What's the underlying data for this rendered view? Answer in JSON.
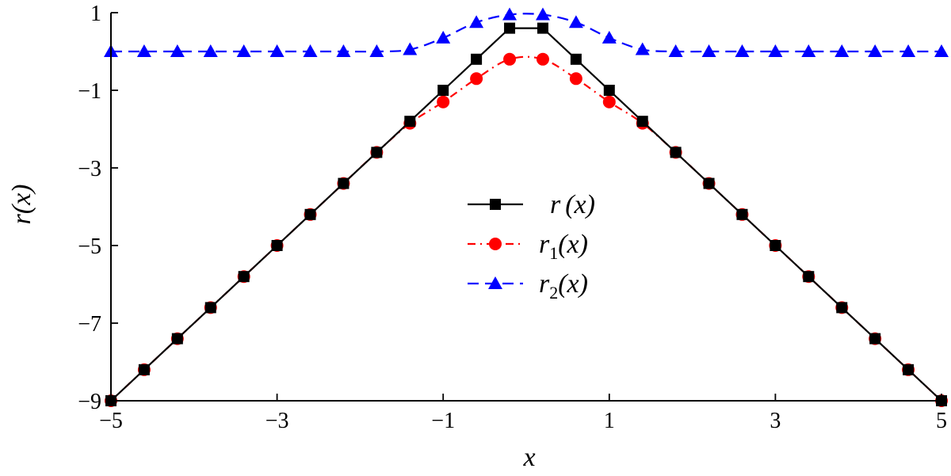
{
  "chart_data": {
    "type": "line",
    "xlabel": "x",
    "ylabel": "r(x)",
    "xlim": [
      -5,
      5
    ],
    "ylim": [
      -9,
      1
    ],
    "xticks": [
      -5,
      -3,
      -1,
      1,
      3,
      5
    ],
    "yticks": [
      1,
      -1,
      -3,
      -5,
      -7,
      -9
    ],
    "xtick_labels": [
      "−5",
      "−3",
      "−1",
      "1",
      "3",
      "5"
    ],
    "ytick_labels": [
      "1",
      "−1",
      "−3",
      "−5",
      "−7",
      "−9"
    ],
    "grid": false,
    "legend_position": "center",
    "x": [
      -5,
      -4.6,
      -4.2,
      -3.8,
      -3.4,
      -3.0,
      -2.6,
      -2.2,
      -1.8,
      -1.4,
      -1.0,
      -0.6,
      -0.2,
      0.2,
      0.6,
      1.0,
      1.4,
      1.8,
      2.2,
      2.6,
      3.0,
      3.4,
      3.8,
      4.2,
      4.6,
      5
    ],
    "series": [
      {
        "name": "r(x)",
        "legend_main": "r",
        "legend_sub": "",
        "legend_tail": "(x)",
        "color": "#000000",
        "marker": "square",
        "dash": "solid",
        "values": [
          -9.0,
          -8.2,
          -7.4,
          -6.6,
          -5.8,
          -5.0,
          -4.2,
          -3.4,
          -2.6,
          -1.8,
          -1.0,
          -0.2,
          0.6,
          0.6,
          -0.2,
          -1.0,
          -1.8,
          -2.6,
          -3.4,
          -4.2,
          -5.0,
          -5.8,
          -6.6,
          -7.4,
          -8.2,
          -9.0
        ],
        "smooth": false
      },
      {
        "name": "r1(x)",
        "legend_main": "r",
        "legend_sub": "1",
        "legend_tail": "(x)",
        "color": "#ff0000",
        "marker": "circle",
        "dash": "dashdot",
        "values": [
          -9.0,
          -8.2,
          -7.4,
          -6.6,
          -5.8,
          -5.0,
          -4.2,
          -3.4,
          -2.6,
          -1.85,
          -1.3,
          -0.7,
          -0.2,
          -0.2,
          -0.7,
          -1.3,
          -1.85,
          -2.6,
          -3.4,
          -4.2,
          -5.0,
          -5.8,
          -6.6,
          -7.4,
          -8.2,
          -9.0
        ],
        "smooth": true
      },
      {
        "name": "r2(x)",
        "legend_main": "r",
        "legend_sub": "2",
        "legend_tail": "(x)",
        "color": "#0000ff",
        "marker": "triangle",
        "dash": "dashed",
        "values": [
          0,
          0,
          0,
          0,
          0,
          0,
          0,
          0,
          0,
          0.05,
          0.35,
          0.75,
          0.95,
          0.95,
          0.75,
          0.35,
          0.05,
          0,
          0,
          0,
          0,
          0,
          0,
          0,
          0,
          0
        ],
        "smooth": true
      }
    ]
  }
}
